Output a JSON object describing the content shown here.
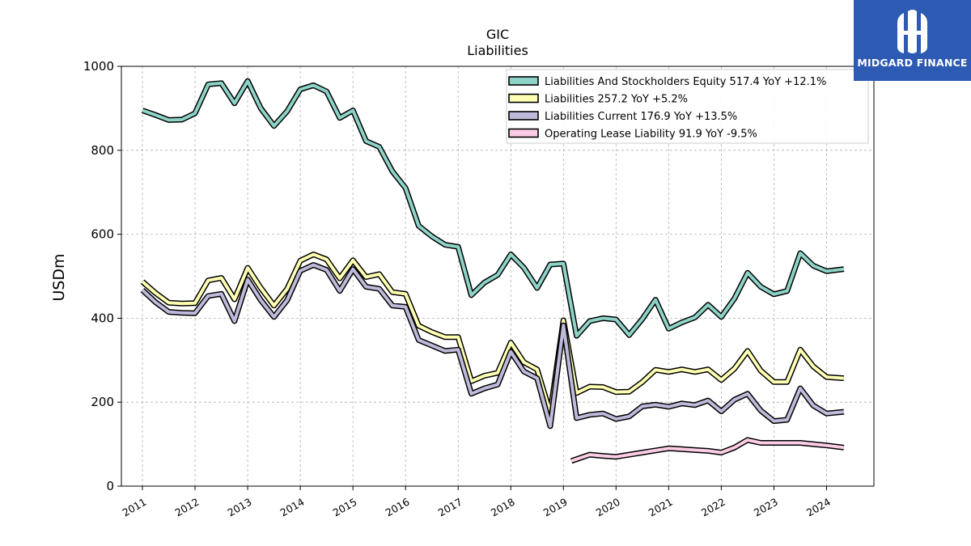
{
  "brand": {
    "name": "MIDGARD FINANCE",
    "bg_color": "#2d5ab3"
  },
  "chart_data": {
    "type": "line",
    "title": "GIC",
    "subtitle": "Liabilities",
    "xlabel": "",
    "ylabel": "USDm",
    "ylim": [
      0,
      1000
    ],
    "yticks": [
      0,
      200,
      400,
      600,
      800,
      1000
    ],
    "xlim": [
      2010.6,
      2024.9
    ],
    "xticks": [
      "2011",
      "2012",
      "2013",
      "2014",
      "2015",
      "2016",
      "2017",
      "2018",
      "2019",
      "2020",
      "2021",
      "2022",
      "2023",
      "2024"
    ],
    "grid": true,
    "legend_position": "top-right",
    "series": [
      {
        "name": "Liabilities And Stockholders Equity",
        "legend": "Liabilities And Stockholders Equity  517.4 YoY +12.1%",
        "color": "#8dd3c7",
        "points": [
          [
            2011.0,
            895
          ],
          [
            2011.25,
            884
          ],
          [
            2011.5,
            872
          ],
          [
            2011.75,
            873
          ],
          [
            2012.0,
            888
          ],
          [
            2012.25,
            957
          ],
          [
            2012.5,
            960
          ],
          [
            2012.75,
            912
          ],
          [
            2013.0,
            965
          ],
          [
            2013.25,
            900
          ],
          [
            2013.5,
            858
          ],
          [
            2013.75,
            893
          ],
          [
            2014.0,
            945
          ],
          [
            2014.25,
            955
          ],
          [
            2014.5,
            940
          ],
          [
            2014.75,
            877
          ],
          [
            2015.0,
            895
          ],
          [
            2015.25,
            822
          ],
          [
            2015.5,
            808
          ],
          [
            2015.75,
            750
          ],
          [
            2016.0,
            710
          ],
          [
            2016.25,
            620
          ],
          [
            2016.5,
            595
          ],
          [
            2016.75,
            575
          ],
          [
            2017.0,
            570
          ],
          [
            2017.25,
            455
          ],
          [
            2017.5,
            485
          ],
          [
            2017.75,
            503
          ],
          [
            2018.0,
            552
          ],
          [
            2018.25,
            520
          ],
          [
            2018.5,
            472
          ],
          [
            2018.75,
            528
          ],
          [
            2019.0,
            530
          ],
          [
            2019.25,
            358
          ],
          [
            2019.5,
            393
          ],
          [
            2019.75,
            400
          ],
          [
            2020.0,
            397
          ],
          [
            2020.25,
            360
          ],
          [
            2020.5,
            398
          ],
          [
            2020.75,
            444
          ],
          [
            2021.0,
            375
          ],
          [
            2021.25,
            390
          ],
          [
            2021.5,
            402
          ],
          [
            2021.75,
            432
          ],
          [
            2022.0,
            403
          ],
          [
            2022.25,
            447
          ],
          [
            2022.5,
            508
          ],
          [
            2022.75,
            475
          ],
          [
            2023.0,
            457
          ],
          [
            2023.25,
            465
          ],
          [
            2023.5,
            555
          ],
          [
            2023.75,
            525
          ],
          [
            2024.0,
            512
          ],
          [
            2024.33,
            517
          ]
        ]
      },
      {
        "name": "Liabilities",
        "legend": "Liabilities  257.2 YoY +5.2%",
        "color": "#ffffb3",
        "points": [
          [
            2011.0,
            487
          ],
          [
            2011.25,
            460
          ],
          [
            2011.5,
            437
          ],
          [
            2011.75,
            435
          ],
          [
            2012.0,
            436
          ],
          [
            2012.25,
            490
          ],
          [
            2012.5,
            496
          ],
          [
            2012.75,
            445
          ],
          [
            2013.0,
            520
          ],
          [
            2013.25,
            472
          ],
          [
            2013.5,
            430
          ],
          [
            2013.75,
            470
          ],
          [
            2014.0,
            537
          ],
          [
            2014.25,
            552
          ],
          [
            2014.5,
            540
          ],
          [
            2014.75,
            495
          ],
          [
            2015.0,
            538
          ],
          [
            2015.25,
            498
          ],
          [
            2015.5,
            505
          ],
          [
            2015.75,
            462
          ],
          [
            2016.0,
            458
          ],
          [
            2016.25,
            382
          ],
          [
            2016.5,
            367
          ],
          [
            2016.75,
            355
          ],
          [
            2017.0,
            355
          ],
          [
            2017.25,
            250
          ],
          [
            2017.5,
            263
          ],
          [
            2017.75,
            270
          ],
          [
            2018.0,
            342
          ],
          [
            2018.25,
            295
          ],
          [
            2018.5,
            278
          ],
          [
            2018.75,
            175
          ],
          [
            2019.0,
            395
          ],
          [
            2019.25,
            222
          ],
          [
            2019.5,
            237
          ],
          [
            2019.75,
            236
          ],
          [
            2020.0,
            224
          ],
          [
            2020.25,
            225
          ],
          [
            2020.5,
            248
          ],
          [
            2020.75,
            277
          ],
          [
            2021.0,
            272
          ],
          [
            2021.25,
            278
          ],
          [
            2021.5,
            272
          ],
          [
            2021.75,
            278
          ],
          [
            2022.0,
            253
          ],
          [
            2022.25,
            280
          ],
          [
            2022.5,
            322
          ],
          [
            2022.75,
            275
          ],
          [
            2023.0,
            248
          ],
          [
            2023.25,
            248
          ],
          [
            2023.5,
            325
          ],
          [
            2023.75,
            285
          ],
          [
            2024.0,
            260
          ],
          [
            2024.33,
            257
          ]
        ]
      },
      {
        "name": "Liabilities Current",
        "legend": "Liabilities Current  176.9 YoY +13.5%",
        "color": "#bebada",
        "points": [
          [
            2011.0,
            467
          ],
          [
            2011.25,
            438
          ],
          [
            2011.5,
            415
          ],
          [
            2011.75,
            413
          ],
          [
            2012.0,
            412
          ],
          [
            2012.25,
            453
          ],
          [
            2012.5,
            458
          ],
          [
            2012.75,
            393
          ],
          [
            2013.0,
            492
          ],
          [
            2013.25,
            443
          ],
          [
            2013.5,
            403
          ],
          [
            2013.75,
            443
          ],
          [
            2014.0,
            513
          ],
          [
            2014.25,
            527
          ],
          [
            2014.5,
            515
          ],
          [
            2014.75,
            465
          ],
          [
            2015.0,
            517
          ],
          [
            2015.25,
            475
          ],
          [
            2015.5,
            470
          ],
          [
            2015.75,
            430
          ],
          [
            2016.0,
            427
          ],
          [
            2016.25,
            348
          ],
          [
            2016.5,
            335
          ],
          [
            2016.75,
            322
          ],
          [
            2017.0,
            325
          ],
          [
            2017.25,
            220
          ],
          [
            2017.5,
            233
          ],
          [
            2017.75,
            242
          ],
          [
            2018.0,
            320
          ],
          [
            2018.25,
            273
          ],
          [
            2018.5,
            257
          ],
          [
            2018.75,
            143
          ],
          [
            2019.0,
            383
          ],
          [
            2019.25,
            162
          ],
          [
            2019.5,
            170
          ],
          [
            2019.75,
            173
          ],
          [
            2020.0,
            160
          ],
          [
            2020.25,
            166
          ],
          [
            2020.5,
            190
          ],
          [
            2020.75,
            194
          ],
          [
            2021.0,
            189
          ],
          [
            2021.25,
            197
          ],
          [
            2021.5,
            193
          ],
          [
            2021.75,
            204
          ],
          [
            2022.0,
            178
          ],
          [
            2022.25,
            206
          ],
          [
            2022.5,
            220
          ],
          [
            2022.75,
            180
          ],
          [
            2023.0,
            155
          ],
          [
            2023.25,
            158
          ],
          [
            2023.5,
            233
          ],
          [
            2023.75,
            192
          ],
          [
            2024.0,
            173
          ],
          [
            2024.33,
            177
          ]
        ]
      },
      {
        "name": "Operating Lease Liability",
        "legend": "Operating Lease Liability  91.9 YoY -9.5%",
        "color": "#fccde5",
        "points": [
          [
            2019.15,
            60
          ],
          [
            2019.5,
            75
          ],
          [
            2019.75,
            72
          ],
          [
            2020.0,
            70
          ],
          [
            2020.25,
            75
          ],
          [
            2020.5,
            80
          ],
          [
            2020.75,
            85
          ],
          [
            2021.0,
            90
          ],
          [
            2021.25,
            88
          ],
          [
            2021.5,
            86
          ],
          [
            2021.75,
            84
          ],
          [
            2022.0,
            80
          ],
          [
            2022.25,
            92
          ],
          [
            2022.5,
            110
          ],
          [
            2022.75,
            103
          ],
          [
            2023.0,
            103
          ],
          [
            2023.25,
            103
          ],
          [
            2023.5,
            103
          ],
          [
            2023.75,
            100
          ],
          [
            2024.0,
            97
          ],
          [
            2024.33,
            92
          ]
        ]
      }
    ]
  }
}
